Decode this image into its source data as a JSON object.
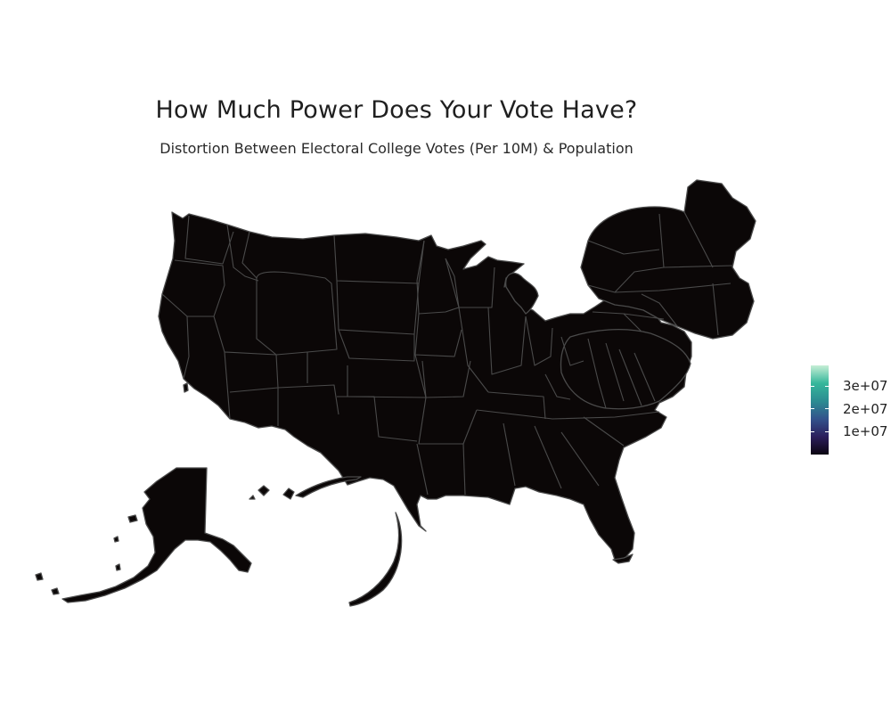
{
  "title": "How Much Power Does Your Vote Have?",
  "subtitle": "Distortion Between Electoral College Votes (Per 10M) & Population",
  "legend": {
    "ticks": [
      {
        "label": "3e+07",
        "value": 30000000
      },
      {
        "label": "2e+07",
        "value": 20000000
      },
      {
        "label": "1e+07",
        "value": 10000000
      }
    ],
    "min": 0,
    "max": 39000000,
    "colors": [
      "#0b0410",
      "#2c1e5c",
      "#33538c",
      "#2c8c92",
      "#35b79b",
      "#c6eed5"
    ]
  },
  "map": {
    "type": "cartogram",
    "fill_color": "#0b0707",
    "border_color": "#4a4a4a"
  }
}
